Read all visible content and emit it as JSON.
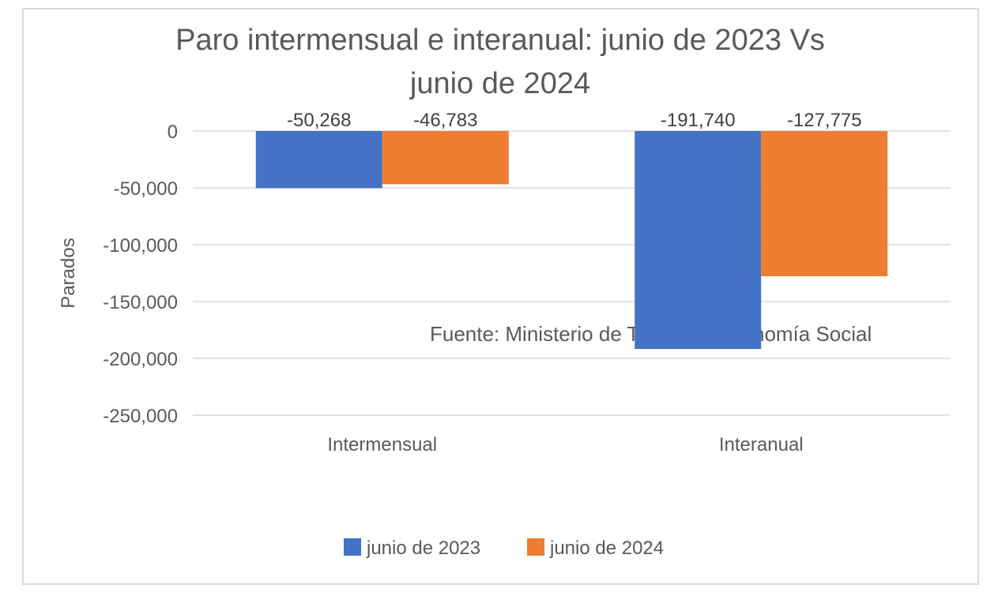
{
  "chart_data": {
    "type": "bar",
    "title_lines": [
      "Paro intermensual e interanual: junio de 2023 Vs",
      "junio de 2024"
    ],
    "categories": [
      "Intermensual",
      "Interanual"
    ],
    "series": [
      {
        "name": "junio de 2023",
        "color": "#4472c4",
        "values": [
          -50268,
          -191740
        ],
        "labels": [
          "-50,268",
          "-191,740"
        ]
      },
      {
        "name": "junio de 2024",
        "color": "#ed7d31",
        "values": [
          -46783,
          -127775
        ],
        "labels": [
          "-46,783",
          "-127,775"
        ]
      }
    ],
    "ylabel": "Parados",
    "ylim": [
      -250000,
      0
    ],
    "yticks": [
      0,
      -50000,
      -100000,
      -150000,
      -200000,
      -250000
    ],
    "ytick_labels": [
      "0",
      "-50,000",
      "-100,000",
      "-150,000",
      "-200,000",
      "-250,000"
    ],
    "annotation": "Fuente: Ministerio de Trabajo y Economía Social",
    "legend_position": "bottom",
    "grid": true
  }
}
